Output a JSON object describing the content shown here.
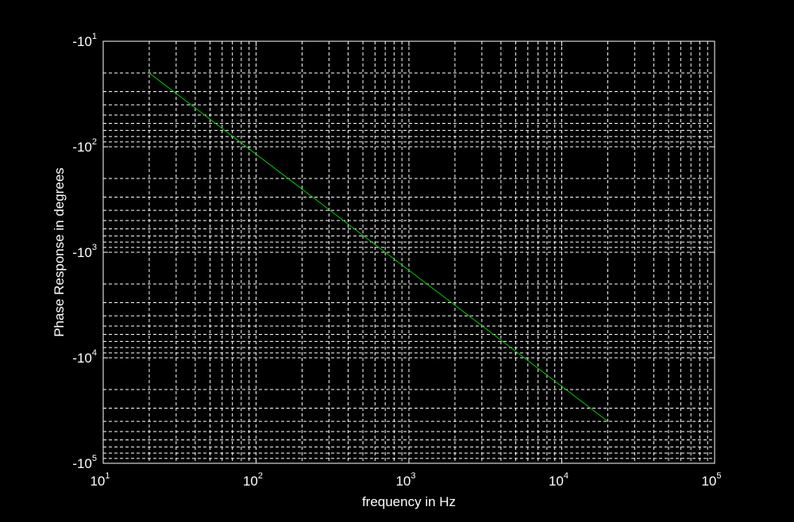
{
  "chart_data": {
    "type": "line",
    "title": "",
    "xlabel": "frequency in Hz",
    "ylabel": "Phase Response in degrees",
    "x_scale": "log",
    "y_scale": "log",
    "y_sign": "negative",
    "xlim": [
      10,
      100000
    ],
    "ylim_magnitude": [
      10,
      100000
    ],
    "grid": true,
    "grid_minor": true,
    "x_tick_labels": [
      {
        "base": "10",
        "exp": "1"
      },
      {
        "base": "10",
        "exp": "2"
      },
      {
        "base": "10",
        "exp": "3"
      },
      {
        "base": "10",
        "exp": "4"
      },
      {
        "base": "10",
        "exp": "5"
      }
    ],
    "y_tick_labels": [
      {
        "base": "-10",
        "exp": "1"
      },
      {
        "base": "-10",
        "exp": "2"
      },
      {
        "base": "-10",
        "exp": "3"
      },
      {
        "base": "-10",
        "exp": "4"
      },
      {
        "base": "-10",
        "exp": "5"
      }
    ],
    "series": [
      {
        "color": "#00c800",
        "x": [
          20,
          20000
        ],
        "y": [
          -20,
          -40000
        ]
      }
    ]
  }
}
